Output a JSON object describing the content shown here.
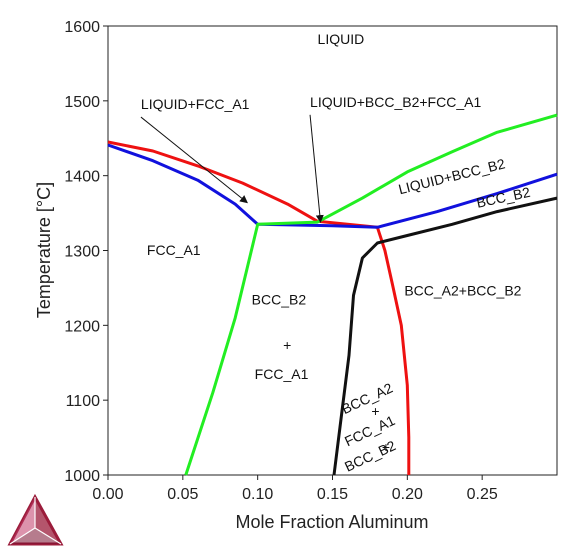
{
  "chart_data": {
    "type": "line",
    "xlabel": "Mole Fraction Aluminum",
    "ylabel": "Temperature [°C]",
    "xlim": [
      0,
      0.3
    ],
    "ylim": [
      1000,
      1600
    ],
    "xticks": [
      "0.00",
      "0.05",
      "0.10",
      "0.15",
      "0.20",
      "0.25"
    ],
    "xtick_values": [
      0,
      0.05,
      0.1,
      0.15,
      0.2,
      0.25
    ],
    "yticks": [
      "1000",
      "1100",
      "1200",
      "1300",
      "1400",
      "1500",
      "1600"
    ],
    "ytick_values": [
      1000,
      1100,
      1200,
      1300,
      1400,
      1500,
      1600
    ],
    "grid": false,
    "legend": "none",
    "series": [
      {
        "color": "#ee1111",
        "points": [
          [
            0,
            1445
          ],
          [
            0.03,
            1433
          ],
          [
            0.06,
            1413
          ],
          [
            0.09,
            1390
          ],
          [
            0.12,
            1362
          ],
          [
            0.14,
            1339
          ],
          [
            0.18,
            1331
          ],
          [
            0.185,
            1300
          ],
          [
            0.19,
            1255
          ],
          [
            0.196,
            1200
          ],
          [
            0.2,
            1120
          ],
          [
            0.201,
            1050
          ],
          [
            0.201,
            1000
          ]
        ]
      },
      {
        "color": "#1111dd",
        "points": [
          [
            0,
            1441
          ],
          [
            0.03,
            1420
          ],
          [
            0.06,
            1394
          ],
          [
            0.085,
            1362
          ],
          [
            0.1,
            1335
          ],
          [
            0.15,
            1333
          ],
          [
            0.18,
            1331
          ],
          [
            0.22,
            1352
          ],
          [
            0.26,
            1376
          ],
          [
            0.3,
            1402
          ]
        ]
      },
      {
        "color": "#22ee22",
        "points": [
          [
            0.052,
            1000
          ],
          [
            0.07,
            1110
          ],
          [
            0.085,
            1210
          ],
          [
            0.1,
            1335
          ],
          [
            0.14,
            1338
          ],
          [
            0.17,
            1370
          ],
          [
            0.2,
            1405
          ],
          [
            0.23,
            1432
          ],
          [
            0.26,
            1458
          ],
          [
            0.3,
            1481
          ]
        ]
      },
      {
        "color": "#111111",
        "points": [
          [
            0.151,
            1000
          ],
          [
            0.156,
            1080
          ],
          [
            0.161,
            1160
          ],
          [
            0.164,
            1240
          ],
          [
            0.17,
            1290
          ],
          [
            0.18,
            1310
          ],
          [
            0.2,
            1320
          ],
          [
            0.23,
            1335
          ],
          [
            0.26,
            1352
          ],
          [
            0.3,
            1370
          ]
        ]
      }
    ],
    "annotations": [
      {
        "text": "LIQUID",
        "x": 0.14,
        "y": 1576
      },
      {
        "text": "LIQUID+FCC_A1",
        "x": 0.022,
        "y": 1489,
        "arrow_to": [
          0.093,
          1364
        ]
      },
      {
        "text": "LIQUID+BCC_B2+FCC_A1",
        "x": 0.135,
        "y": 1492,
        "arrow_to": [
          0.142,
          1338
        ]
      },
      {
        "text": "LIQUID+BCC_B2",
        "x": 0.195,
        "y": 1375,
        "rotate": -14
      },
      {
        "text": "BCC_B2",
        "x": 0.247,
        "y": 1357,
        "rotate": -12
      },
      {
        "text": "FCC_A1",
        "x": 0.026,
        "y": 1294
      },
      {
        "text": "BCC_A2+BCC_B2",
        "x": 0.198,
        "y": 1240
      },
      {
        "text": "BCC_B2",
        "x": 0.096,
        "y": 1228
      },
      {
        "text": "+",
        "x": 0.117,
        "y": 1167
      },
      {
        "text": "FCC_A1",
        "x": 0.098,
        "y": 1128
      },
      {
        "text": "BCC_A2",
        "x": 0.158,
        "y": 1081,
        "rotate": -25
      },
      {
        "text": "+",
        "x": 0.176,
        "y": 1079
      },
      {
        "text": "FCC_A1",
        "x": 0.16,
        "y": 1038,
        "rotate": -25
      },
      {
        "text": "+",
        "x": 0.183,
        "y": 1031
      },
      {
        "text": "BCC_B2",
        "x": 0.16,
        "y": 1004,
        "rotate": -25
      }
    ]
  },
  "logo": {
    "colors": [
      "#9b1c3b",
      "#c03a68",
      "#7a1030"
    ]
  }
}
